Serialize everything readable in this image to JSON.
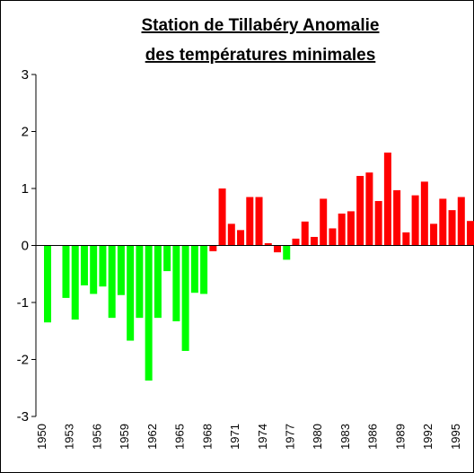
{
  "chart_data": {
    "type": "bar",
    "title": [
      "Station de Tillabéry Anomalie",
      "des températures minimales"
    ],
    "categories": [
      "1950",
      null,
      null,
      "1953",
      null,
      null,
      "1956",
      null,
      null,
      "1959",
      null,
      null,
      "1962",
      null,
      null,
      "1965",
      null,
      null,
      "1968",
      null,
      null,
      "1971",
      null,
      null,
      "1974",
      null,
      null,
      "1977",
      null,
      null,
      "1980",
      null,
      null,
      "1983",
      null,
      null,
      "1986",
      null,
      null,
      "1989",
      null,
      null,
      "1992",
      null,
      null,
      "1995",
      null
    ],
    "values": [
      -1.35,
      null,
      -0.92,
      -1.3,
      -0.7,
      -0.85,
      -0.72,
      -1.27,
      -0.87,
      -1.67,
      -1.27,
      -2.37,
      -1.27,
      -0.45,
      -1.33,
      -1.85,
      -0.83,
      -0.85,
      -0.1,
      1.0,
      0.38,
      0.27,
      0.85,
      0.85,
      0.04,
      -0.12,
      -0.25,
      0.12,
      0.42,
      0.15,
      0.82,
      0.3,
      0.56,
      0.6,
      1.22,
      1.28,
      0.78,
      1.63,
      0.97,
      0.23,
      0.88,
      1.12,
      0.38,
      0.82,
      0.62,
      0.85,
      0.43
    ],
    "colors": [
      "#00ff00",
      "#00ff00",
      "#00ff00",
      "#00ff00",
      "#00ff00",
      "#00ff00",
      "#00ff00",
      "#00ff00",
      "#00ff00",
      "#00ff00",
      "#00ff00",
      "#00ff00",
      "#00ff00",
      "#00ff00",
      "#00ff00",
      "#00ff00",
      "#00ff00",
      "#00ff00",
      "#ff0000",
      "#ff0000",
      "#ff0000",
      "#ff0000",
      "#ff0000",
      "#ff0000",
      "#ff0000",
      "#ff0000",
      "#00ff00",
      "#ff0000",
      "#ff0000",
      "#ff0000",
      "#ff0000",
      "#ff0000",
      "#ff0000",
      "#ff0000",
      "#ff0000",
      "#ff0000",
      "#ff0000",
      "#ff0000",
      "#ff0000",
      "#ff0000",
      "#ff0000",
      "#ff0000",
      "#ff0000",
      "#ff0000",
      "#ff0000",
      "#ff0000",
      "#ff0000"
    ],
    "ylim": [
      -3,
      3
    ],
    "yticks": [
      -3,
      -2,
      -1,
      0,
      1,
      2,
      3
    ]
  }
}
